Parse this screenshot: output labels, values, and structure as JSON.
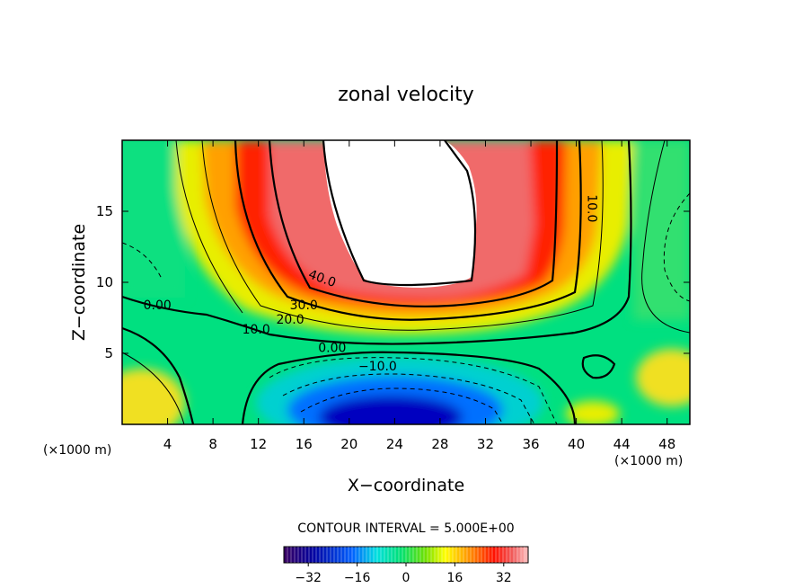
{
  "chart_data": {
    "type": "heatmap",
    "title": "zonal velocity",
    "xlabel": "X−coordinate",
    "ylabel": "Z−coordinate",
    "x_unit_left": "(×1000 m)",
    "x_unit_right": "(×1000 m)",
    "xlim": [
      0,
      50
    ],
    "ylim": [
      0,
      20
    ],
    "x_ticks": [
      4,
      8,
      12,
      16,
      20,
      24,
      28,
      32,
      36,
      40,
      44,
      48
    ],
    "y_ticks": [
      5,
      10,
      15
    ],
    "contour_interval_text": "CONTOUR INTERVAL = 5.000E+00",
    "colorbar": {
      "min": -40,
      "max": 40,
      "ticks": [
        -32,
        -16,
        0,
        16,
        32
      ],
      "tick_labels": [
        "−32",
        "−16",
        "0",
        "16",
        "32"
      ]
    },
    "contour_labels": [
      {
        "text": "40.0",
        "x": 17.5,
        "y": 10.0,
        "rotate": 20
      },
      {
        "text": "30.0",
        "x": 16.0,
        "y": 8.1,
        "rotate": 0
      },
      {
        "text": "20.0",
        "x": 14.8,
        "y": 7.1,
        "rotate": 0
      },
      {
        "text": "10.0",
        "x": 11.8,
        "y": 6.4,
        "rotate": 0
      },
      {
        "text": "0.00",
        "x": 3.1,
        "y": 8.1,
        "rotate": 0
      },
      {
        "text": "0.00",
        "x": 18.5,
        "y": 5.1,
        "rotate": 0
      },
      {
        "text": "−10.0",
        "x": 22.5,
        "y": 3.8,
        "rotate": 0
      },
      {
        "text": "10.0",
        "x": 41.0,
        "y": 15.2,
        "rotate": 90
      }
    ]
  }
}
